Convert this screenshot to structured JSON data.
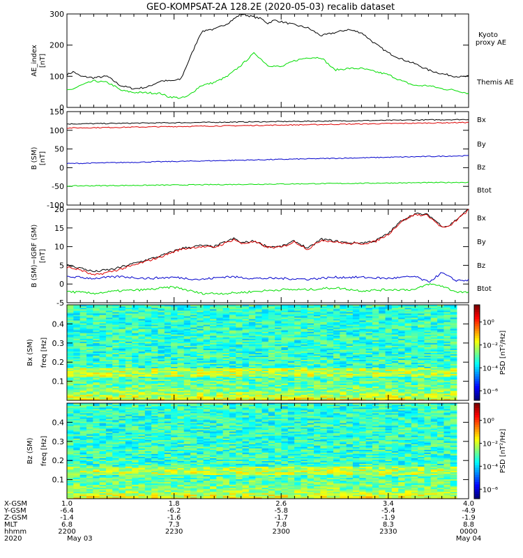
{
  "title": "GEO-KOMPSAT-2A 128.2E (2020-05-03) recalib dataset",
  "colors": {
    "black": "#000000",
    "green": "#00dd00",
    "red": "#dd0000",
    "blue": "#0000cc"
  },
  "chart_data": [
    {
      "type": "line",
      "panel": "AE index",
      "ylabel_top": "AE_index",
      "ylabel_unit": "[nT]",
      "ylim": [
        0,
        300
      ],
      "yticks": [
        "0",
        "100",
        "200",
        "300"
      ],
      "xlim": [
        1.0,
        4.0
      ],
      "legend": [
        "Kyoto proxy AE",
        "Themis AE"
      ],
      "series": [
        {
          "name": "Themis AE",
          "color": "black",
          "x": [
            1.0,
            1.05,
            1.1,
            1.2,
            1.3,
            1.35,
            1.4,
            1.5,
            1.6,
            1.7,
            1.78,
            1.85,
            1.9,
            2.0,
            2.05,
            2.1,
            2.2,
            2.3,
            2.35,
            2.45,
            2.5,
            2.55,
            2.65,
            2.7,
            2.8,
            2.9,
            3.0,
            3.1,
            3.2,
            3.3,
            3.4,
            3.5,
            3.6,
            3.7,
            3.8,
            3.9,
            3.95,
            4.0
          ],
          "y": [
            105,
            115,
            100,
            95,
            100,
            85,
            70,
            60,
            65,
            85,
            85,
            90,
            140,
            240,
            250,
            250,
            270,
            300,
            295,
            285,
            270,
            280,
            270,
            265,
            255,
            230,
            240,
            250,
            240,
            205,
            175,
            155,
            140,
            120,
            108,
            100,
            98,
            100
          ]
        },
        {
          "name": "Kyoto proxy AE",
          "color": "green",
          "x": [
            1.0,
            1.05,
            1.1,
            1.2,
            1.3,
            1.35,
            1.4,
            1.5,
            1.6,
            1.7,
            1.75,
            1.85,
            1.9,
            2.0,
            2.1,
            2.2,
            2.3,
            2.35,
            2.4,
            2.5,
            2.6,
            2.7,
            2.8,
            2.9,
            3.0,
            3.1,
            3.2,
            3.3,
            3.4,
            3.5,
            3.6,
            3.7,
            3.8,
            3.9,
            4.0
          ],
          "y": [
            55,
            60,
            70,
            85,
            80,
            70,
            55,
            48,
            47,
            45,
            35,
            30,
            35,
            70,
            80,
            100,
            135,
            155,
            175,
            135,
            130,
            150,
            160,
            160,
            120,
            125,
            125,
            115,
            105,
            85,
            70,
            70,
            60,
            55,
            45
          ]
        }
      ]
    },
    {
      "type": "line",
      "panel": "B (SM)",
      "ylabel_top": "B (SM)",
      "ylabel_unit": "[nT]",
      "ylim": [
        -100,
        150
      ],
      "yticks": [
        "-100",
        "-50",
        "0",
        "50",
        "100",
        "150"
      ],
      "xlim": [
        1.0,
        4.0
      ],
      "legend": [
        "Bx",
        "By",
        "Bz",
        "Btot"
      ],
      "series": [
        {
          "name": "Btot",
          "color": "black",
          "x": [
            1.0,
            4.0
          ],
          "y": [
            117,
            129
          ]
        },
        {
          "name": "Bz",
          "color": "red",
          "x": [
            1.0,
            4.0
          ],
          "y": [
            106,
            121
          ]
        },
        {
          "name": "Bx",
          "color": "blue",
          "x": [
            1.0,
            4.0
          ],
          "y": [
            11,
            32
          ]
        },
        {
          "name": "By",
          "color": "green",
          "x": [
            1.0,
            4.0
          ],
          "y": [
            -49,
            -39
          ]
        }
      ]
    },
    {
      "type": "line",
      "panel": "B (SM) - IGRF (SM)",
      "ylabel_top": "B (SM)−IGRF (SM)",
      "ylabel_unit": "[nT]",
      "ylim": [
        -5,
        20
      ],
      "yticks": [
        "-5",
        "0",
        "5",
        "10",
        "15",
        "20"
      ],
      "xlim": [
        1.0,
        4.0
      ],
      "legend": [
        "Bx",
        "By",
        "Bz",
        "Btot"
      ],
      "series": [
        {
          "name": "Btot",
          "color": "black",
          "x": [
            1.0,
            1.1,
            1.2,
            1.35,
            1.5,
            1.7,
            1.85,
            1.95,
            2.0,
            2.1,
            2.2,
            2.25,
            2.3,
            2.4,
            2.5,
            2.6,
            2.7,
            2.75,
            2.8,
            2.9,
            3.0,
            3.1,
            3.2,
            3.3,
            3.4,
            3.5,
            3.6,
            3.7,
            3.75,
            3.8,
            3.85,
            3.9,
            4.0
          ],
          "y": [
            5,
            4.3,
            3.3,
            4.0,
            5.5,
            7.5,
            9.5,
            10.0,
            10.3,
            10.0,
            11.5,
            12.2,
            11.0,
            11.5,
            10.0,
            10.0,
            11.5,
            10.5,
            9.5,
            12.0,
            11.5,
            11.0,
            11.0,
            11.5,
            13.5,
            17.0,
            18.8,
            18.5,
            17.0,
            15.5,
            15.5,
            17.0,
            20.0
          ]
        },
        {
          "name": "Bz",
          "color": "red",
          "x": [
            1.0,
            1.1,
            1.2,
            1.35,
            1.5,
            1.7,
            1.85,
            1.95,
            2.0,
            2.1,
            2.2,
            2.25,
            2.3,
            2.4,
            2.5,
            2.6,
            2.7,
            2.75,
            2.8,
            2.9,
            3.0,
            3.1,
            3.2,
            3.3,
            3.4,
            3.5,
            3.6,
            3.7,
            3.75,
            3.8,
            3.85,
            3.9,
            4.0
          ],
          "y": [
            4.5,
            3.8,
            2.3,
            3.5,
            5.0,
            7.3,
            9.3,
            9.8,
            10.0,
            9.8,
            11.2,
            12.0,
            10.8,
            11.3,
            9.8,
            9.8,
            11.3,
            10.3,
            9.3,
            11.8,
            11.3,
            10.8,
            10.8,
            11.3,
            13.3,
            16.8,
            18.6,
            18.3,
            16.6,
            15.2,
            15.2,
            16.8,
            19.8
          ]
        },
        {
          "name": "Bx",
          "color": "blue",
          "x": [
            1.0,
            1.2,
            1.4,
            1.6,
            1.8,
            2.0,
            2.2,
            2.4,
            2.6,
            2.8,
            3.0,
            3.2,
            3.4,
            3.6,
            3.7,
            3.8,
            3.85,
            3.9,
            4.0
          ],
          "y": [
            2.0,
            1.5,
            2.0,
            1.5,
            1.8,
            1.2,
            2.0,
            1.5,
            1.5,
            1.3,
            1.8,
            1.8,
            1.5,
            2.0,
            0.5,
            3.0,
            2.0,
            1.0,
            1.0
          ]
        },
        {
          "name": "By",
          "color": "green",
          "x": [
            1.0,
            1.2,
            1.4,
            1.6,
            1.8,
            2.0,
            2.2,
            2.4,
            2.6,
            2.8,
            3.0,
            3.2,
            3.4,
            3.6,
            3.7,
            3.8,
            3.9,
            4.0
          ],
          "y": [
            -2.0,
            -2.5,
            -1.8,
            -1.5,
            -0.8,
            -2.5,
            -2.5,
            -2.0,
            -1.5,
            -1.5,
            -1.0,
            -1.8,
            -1.5,
            -1.5,
            0.0,
            -0.5,
            -2.0,
            -2.3
          ]
        }
      ]
    },
    {
      "type": "heatmap",
      "panel": "Bx (SM) spectrogram",
      "ylabel_top": "Bx (SM)",
      "ylabel_unit": "freq [Hz]",
      "ylim": [
        0,
        0.5
      ],
      "yticks": [
        "0.1",
        "0.2",
        "0.3",
        "0.4"
      ],
      "colorbar_label": "PSD [nT²/Hz]",
      "colorbar_ticks": [
        "10⁰",
        "10⁻²",
        "10⁻⁴",
        "10⁻⁶"
      ]
    },
    {
      "type": "heatmap",
      "panel": "Bz (SM) spectrogram",
      "ylabel_top": "Bz (SM)",
      "ylabel_unit": "freq [Hz]",
      "ylim": [
        0,
        0.5
      ],
      "yticks": [
        "0.1",
        "0.2",
        "0.3",
        "0.4"
      ],
      "colorbar_label": "PSD [nT²/Hz]",
      "colorbar_ticks": [
        "10⁰",
        "10⁻²",
        "10⁻⁴",
        "10⁻⁶"
      ]
    }
  ],
  "x_axis": {
    "row_labels": [
      "X-GSM",
      "Y-GSM",
      "Z-GSM",
      "MLT",
      "hhmm",
      "2020"
    ],
    "columns": [
      {
        "x": 1.0,
        "values": [
          "1.0",
          "-6.4",
          "-1.4",
          "6.8",
          "2200",
          "May 03"
        ]
      },
      {
        "x": 1.8,
        "values": [
          "1.8",
          "-6.2",
          "-1.6",
          "7.3",
          "2230",
          ""
        ]
      },
      {
        "x": 2.6,
        "values": [
          "2.6",
          "-5.8",
          "-1.7",
          "7.8",
          "2300",
          ""
        ]
      },
      {
        "x": 3.4,
        "values": [
          "3.4",
          "-5.4",
          "-1.9",
          "8.3",
          "2330",
          ""
        ]
      },
      {
        "x": 4.0,
        "values": [
          "4.0",
          "-4.9",
          "-1.9",
          "8.8",
          "0000",
          "May 04"
        ]
      }
    ]
  }
}
